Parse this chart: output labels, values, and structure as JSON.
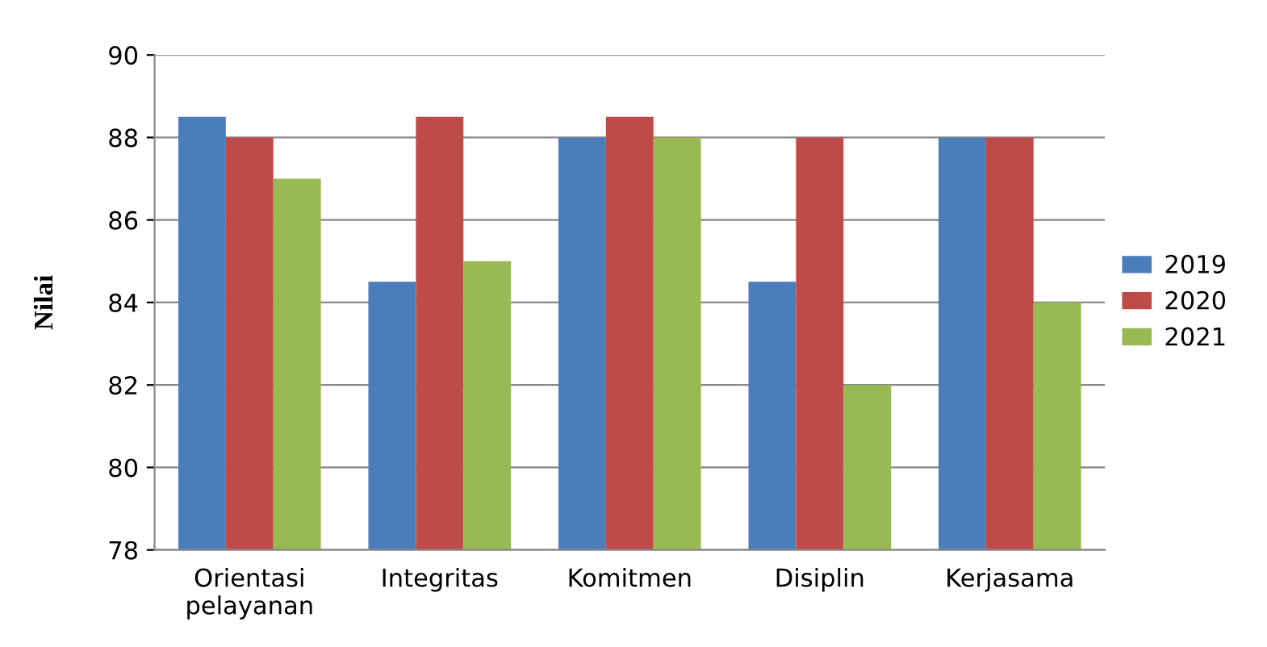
{
  "chart_data": {
    "type": "bar",
    "ylabel": "Nilai",
    "categories": [
      "Orientasi\npelayanan",
      "Integritas",
      "Komitmen",
      "Disiplin",
      "Kerjasama"
    ],
    "series": [
      {
        "name": "2019",
        "color": "#4a7ebb",
        "values": [
          88.5,
          84.5,
          88,
          84.5,
          88
        ]
      },
      {
        "name": "2020",
        "color": "#be4b48",
        "values": [
          88,
          88.5,
          88.5,
          88,
          88
        ]
      },
      {
        "name": "2021",
        "color": "#98b954",
        "values": [
          87,
          85,
          88,
          82,
          84
        ]
      }
    ],
    "ylim": [
      78,
      90
    ],
    "yticks": [
      78,
      80,
      82,
      84,
      86,
      88,
      90
    ],
    "grid": "y",
    "legend": "right"
  }
}
